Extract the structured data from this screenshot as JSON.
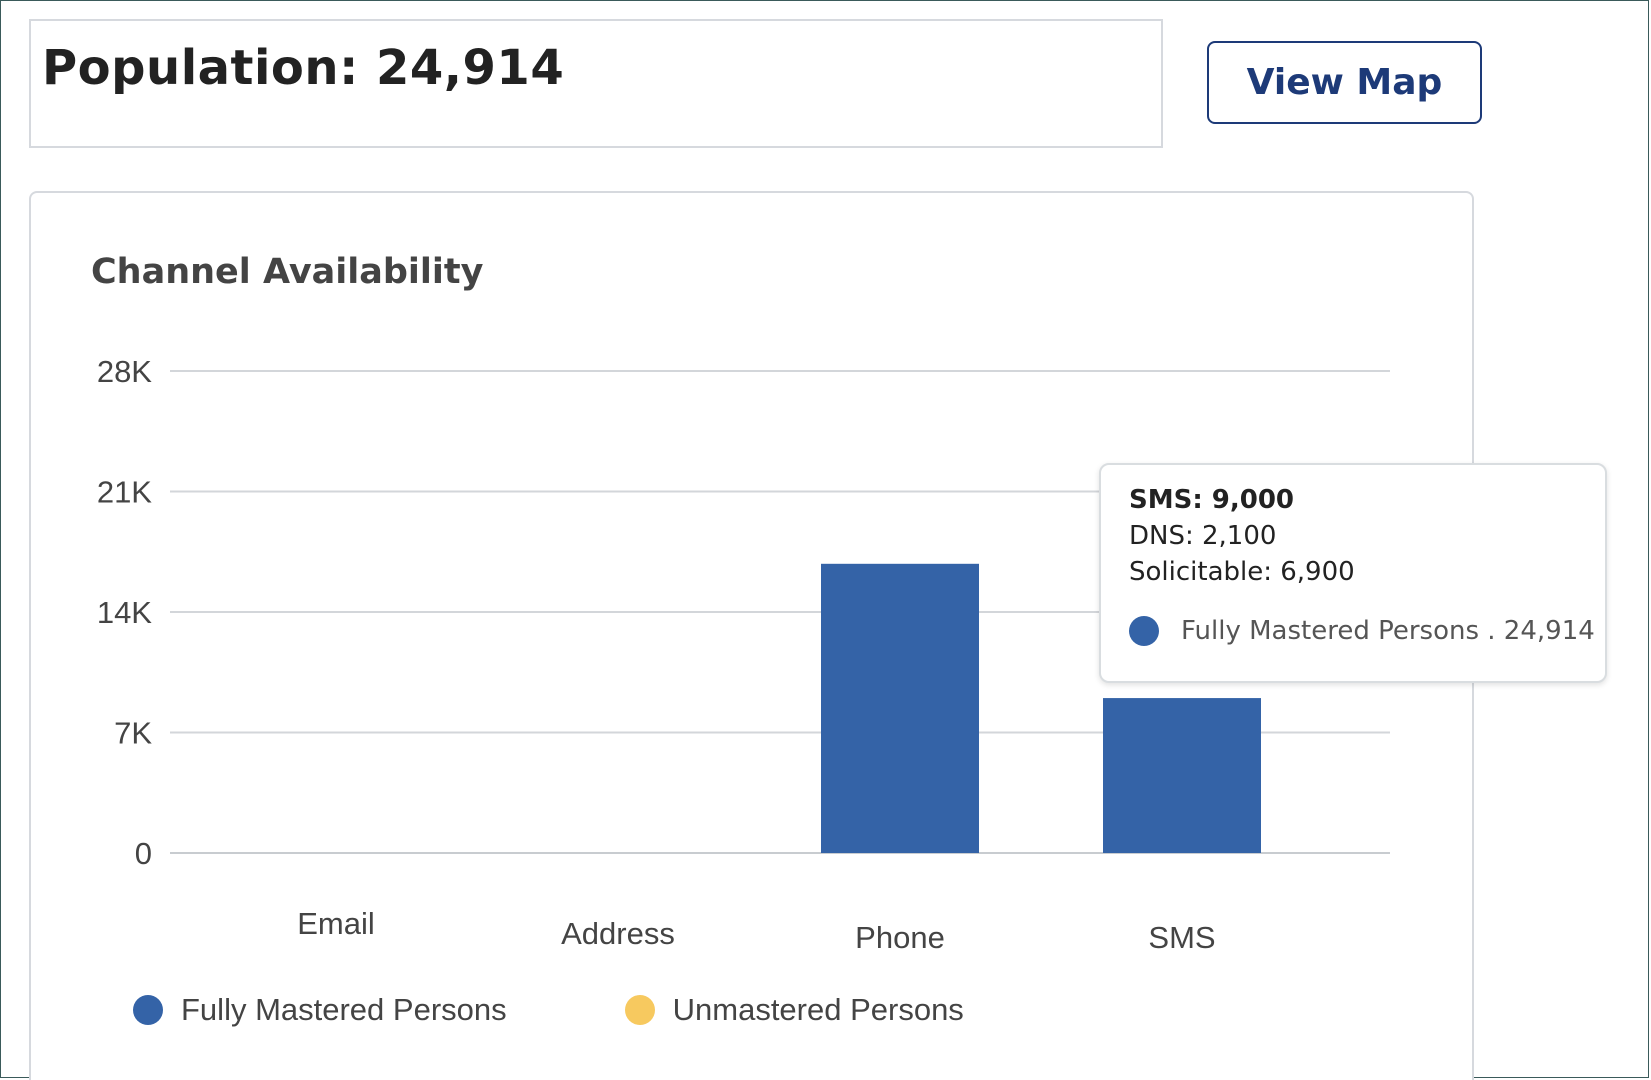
{
  "header": {
    "population_title": "Population: 24,914",
    "view_map_label": "View Map"
  },
  "colors": {
    "fully_mastered": "#3463a7",
    "unmastered": "#f7c95f",
    "view_map_border": "#1d3a78"
  },
  "chart_data": {
    "type": "bar",
    "title": "Channel Availability",
    "categories": [
      "Email",
      "Address",
      "Phone",
      "SMS"
    ],
    "series": [
      {
        "name": "Fully Mastered Persons",
        "color": "#3463a7",
        "values": [
          0,
          0,
          16800,
          9000
        ]
      },
      {
        "name": "Unmastered Persons",
        "color": "#f7c95f",
        "values": [
          0,
          0,
          0,
          0
        ]
      }
    ],
    "yticks": [
      0,
      7000,
      14000,
      21000,
      28000
    ],
    "ytick_labels": [
      "0",
      "7K",
      "14K",
      "21K",
      "28K"
    ],
    "ylim": [
      0,
      28000
    ],
    "grid": true,
    "legend_position": "bottom-left"
  },
  "tooltip": {
    "title": "SMS: 9,000",
    "dns": "DNS: 2,100",
    "solicitable": "Solicitable: 6,900",
    "series_label": "Fully Mastered Persons . 24,914"
  }
}
